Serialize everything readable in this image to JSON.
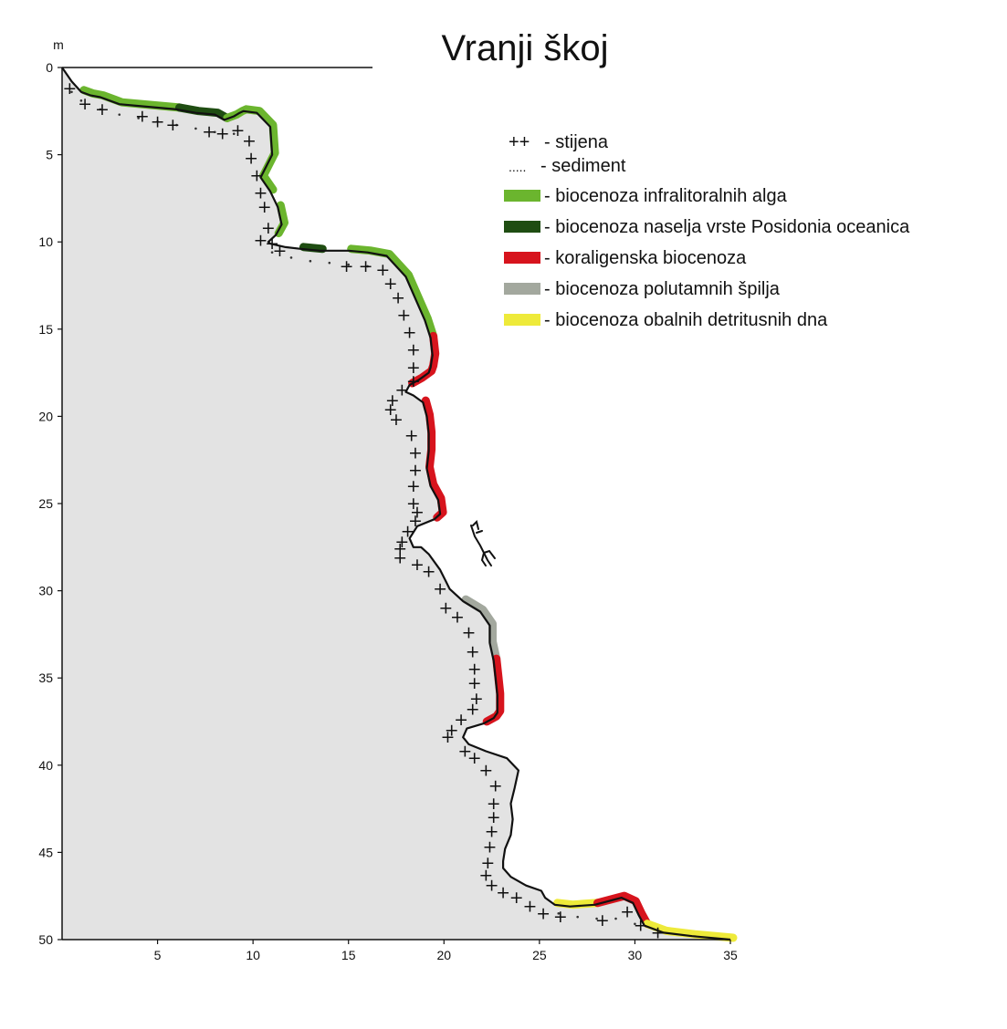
{
  "title": "Vranji škoj",
  "y_unit": "m",
  "x_ticks": [
    "5",
    "10",
    "15",
    "20",
    "25",
    "30",
    "35"
  ],
  "y_ticks": [
    "0",
    "5",
    "10",
    "15",
    "20",
    "25",
    "30",
    "35",
    "40",
    "45",
    "50"
  ],
  "legend": [
    {
      "symbol": "++",
      "label": "- stijena"
    },
    {
      "symbol": ".....",
      "label": "- sediment"
    },
    {
      "color": "#6bb52e",
      "label": "- biocenoza infralitoralnih alga"
    },
    {
      "color": "#1f4d12",
      "label": "- biocenoza naselja vrste Posidonia oceanica"
    },
    {
      "color": "#d7141d",
      "label": "- koraligenska biocenoza"
    },
    {
      "color": "#a3a89e",
      "label": "- biocenoza polutamnih špilja"
    },
    {
      "color": "#eeea3a",
      "label": "- biocenoza obalnih detritusnih dna"
    }
  ],
  "colors": {
    "rock_fill": "#e3e3e3",
    "outline": "#111111",
    "infralittoral_algae": "#6bb52e",
    "posidonia": "#1f4d12",
    "coralligenous": "#d7141d",
    "semi_dark_caves": "#a3a89e",
    "coastal_detritic": "#eeea3a"
  },
  "chart_data": {
    "type": "line",
    "xlim": [
      0,
      35
    ],
    "ylim": [
      0,
      50
    ],
    "y_inverted": true,
    "profile": {
      "x": [
        0,
        0.5,
        1,
        1.5,
        2,
        3,
        4,
        5,
        6,
        7,
        8,
        8.5,
        9,
        9.3,
        9.5,
        10.2,
        10.9,
        11,
        10.4,
        10.9,
        11.3,
        11.5,
        11.2,
        10.8,
        10.9,
        11.7,
        12.5,
        13.5,
        15,
        16,
        17,
        18,
        18.6,
        19,
        19.3,
        19.4,
        19.3,
        19.2,
        18.7,
        18.2,
        18,
        18.4,
        18.9,
        19.1,
        19.2,
        19.2,
        19.1,
        19.3,
        19.7,
        19.8,
        19.5,
        18.6,
        18.2,
        18.4,
        18.8,
        19.2,
        19.8,
        20.3,
        21,
        21.9,
        22.4,
        22.4,
        22.6,
        22.7,
        22.8,
        22.8,
        22.6,
        22.1,
        21.2,
        21,
        21.3,
        22.2,
        23.3,
        23.9,
        23.7,
        23.5,
        23.6,
        23.5,
        23.2,
        23.1,
        23.1,
        23.5,
        24.3,
        25.1,
        25.3,
        25.8,
        26.6,
        27.9,
        29.3,
        29.9,
        30.2,
        30.5,
        31.5,
        33,
        35
      ],
      "y": [
        0,
        0.8,
        1.4,
        1.6,
        1.7,
        2.1,
        2.2,
        2.3,
        2.4,
        2.6,
        2.7,
        3,
        2.8,
        2.6,
        2.5,
        2.6,
        3.4,
        5,
        6.3,
        7.1,
        8,
        9,
        9.6,
        10,
        10.1,
        10.3,
        10.4,
        10.5,
        10.5,
        10.6,
        10.8,
        12,
        13.5,
        14.5,
        15.5,
        16.5,
        17.2,
        17.5,
        17.9,
        18.2,
        18.6,
        18.8,
        19.2,
        20,
        21,
        22,
        23,
        24,
        24.8,
        25.6,
        25.9,
        26.3,
        27,
        27.5,
        27.5,
        27.9,
        28.8,
        29.9,
        30.6,
        31.2,
        32,
        33,
        34,
        35,
        36,
        37,
        37.3,
        37.6,
        37.9,
        38.4,
        38.8,
        39.2,
        39.6,
        40.3,
        41.3,
        42.2,
        43.1,
        44,
        44.8,
        45.5,
        45.9,
        46.4,
        46.9,
        47.2,
        47.6,
        48,
        48.1,
        48,
        47.6,
        47.9,
        48.6,
        49.2,
        49.6,
        49.8,
        50
      ]
    },
    "segments": [
      {
        "biocenosis": "infralittoral_algae",
        "from_x": 0.6,
        "to_x": 6.8
      },
      {
        "biocenosis": "posidonia",
        "from_x": 2.8,
        "to_x": 8.5
      },
      {
        "biocenosis": "infralittoral_algae",
        "from_x": 8.5,
        "to_x": 11
      },
      {
        "biocenosis": "infralittoral_algae",
        "from_x": 11,
        "to_x": 12
      },
      {
        "biocenosis": "posidonia",
        "from_x": 12,
        "to_x": 14.5
      },
      {
        "biocenosis": "infralittoral_algae",
        "from_x": 14.5,
        "to_x": 19.3
      },
      {
        "biocenosis": "semi_dark_caves",
        "from_x": 18,
        "to_x": 19.3
      },
      {
        "biocenosis": "coralligenous",
        "from_x": 18.2,
        "to_x": 19.8
      },
      {
        "biocenosis": "semi_dark_caves",
        "from_x": 18.2,
        "to_x": 19.5
      },
      {
        "biocenosis": "coralligenous",
        "from_x": 18.8,
        "to_x": 22.8
      },
      {
        "biocenosis": "semi_dark_caves",
        "from_x": 21,
        "to_x": 22.6
      },
      {
        "biocenosis": "coralligenous",
        "from_x": 21.3,
        "to_x": 25.8
      },
      {
        "biocenosis": "coastal_detritic",
        "from_x": 25.8,
        "to_x": 27.9
      },
      {
        "biocenosis": "coralligenous",
        "from_x": 27.9,
        "to_x": 30.5
      },
      {
        "biocenosis": "coastal_detritic",
        "from_x": 30.5,
        "to_x": 35
      }
    ],
    "rock_markers": {
      "x": [
        0.4,
        1.2,
        2.1,
        4.2,
        5,
        5.8,
        7.7,
        8.4,
        9.2,
        9.8,
        9.9,
        10.2,
        10.4,
        10.6,
        10.8,
        10.4,
        11,
        11.4,
        14.9,
        15.9,
        16.8,
        17.2,
        17.6,
        17.9,
        18.2,
        18.4,
        18.4,
        18.4,
        17.8,
        17.3,
        17.2,
        17.5,
        18.3,
        18.5,
        18.5,
        18.4,
        18.4,
        18.6,
        18.5,
        18.1,
        17.8,
        17.7,
        17.7,
        18.6,
        19.2,
        19.8,
        20.1,
        20.7,
        21.3,
        21.5,
        21.6,
        21.6,
        21.7,
        21.5,
        20.9,
        20.4,
        20.2,
        21.1,
        21.6,
        22.2,
        22.7,
        22.6,
        22.6,
        22.5,
        22.4,
        22.3,
        22.2,
        22.5,
        23.1,
        23.8,
        24.5,
        25.2,
        26.1,
        28.3,
        29.6,
        30.3,
        31.2
      ],
      "y": [
        1.2,
        2.1,
        2.4,
        2.8,
        3.1,
        3.3,
        3.7,
        3.8,
        3.6,
        4.2,
        5.2,
        6.2,
        7.2,
        8,
        9.2,
        9.9,
        10.1,
        10.5,
        11.4,
        11.4,
        11.6,
        12.4,
        13.2,
        14.2,
        15.2,
        16.2,
        17.2,
        18,
        18.5,
        19.1,
        19.6,
        20.2,
        21.1,
        22.1,
        23.1,
        24,
        25,
        25.5,
        26,
        26.6,
        27.2,
        27.6,
        28.1,
        28.5,
        28.9,
        29.9,
        31,
        31.5,
        32.4,
        33.5,
        34.5,
        35.3,
        36.2,
        36.8,
        37.4,
        38,
        38.4,
        39.2,
        39.6,
        40.3,
        41.2,
        42.2,
        43,
        43.8,
        44.7,
        45.6,
        46.3,
        46.9,
        47.3,
        47.6,
        48.1,
        48.5,
        48.7,
        48.9,
        48.4,
        49.2,
        49.6
      ]
    },
    "sediment_dots": {
      "x": [
        0.5,
        1,
        2,
        3,
        4,
        5,
        6,
        7,
        8,
        9,
        11,
        12,
        13,
        14,
        15,
        16,
        26,
        27,
        28,
        29,
        30,
        31,
        32,
        33,
        34,
        35
      ],
      "y": [
        1.4,
        1.9,
        2.4,
        2.7,
        2.9,
        3.1,
        3.3,
        3.5,
        3.7,
        3.8,
        10.6,
        10.9,
        11.1,
        11.2,
        11.3,
        11.4,
        48.5,
        48.7,
        48.8,
        48.8,
        49.1,
        49.4,
        49.6,
        49.8,
        49.9,
        50
      ]
    }
  }
}
